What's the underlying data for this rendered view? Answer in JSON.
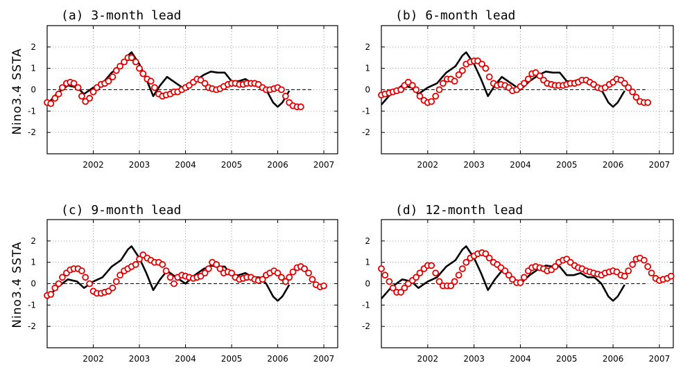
{
  "chart_data": [
    {
      "type": "line",
      "title": "(a) 3-month lead",
      "ylabel": "Nino3.4 SSTA",
      "xlim": [
        2001.0,
        2007.3
      ],
      "ylim": [
        -3,
        3
      ],
      "xticks": [
        "2002",
        "2003",
        "2004",
        "2005",
        "2006",
        "2007"
      ],
      "yticks": [
        "-2",
        "-1",
        "0",
        "1",
        "2"
      ],
      "grid": true,
      "series": [
        {
          "style": "black-line",
          "x": [
            2001.0,
            2001.2,
            2001.45,
            2001.65,
            2001.8,
            2002.0,
            2002.2,
            2002.4,
            2002.6,
            2002.75,
            2002.83,
            2003.0,
            2003.15,
            2003.3,
            2003.45,
            2003.6,
            2003.8,
            2004.0,
            2004.2,
            2004.4,
            2004.55,
            2004.7,
            2004.85,
            2005.0,
            2005.15,
            2005.3,
            2005.45,
            2005.6,
            2005.75,
            2005.9,
            2006.0,
            2006.1,
            2006.25
          ],
          "y": [
            -0.7,
            -0.2,
            0.2,
            0.1,
            -0.2,
            0.1,
            0.3,
            0.8,
            1.1,
            1.6,
            1.75,
            1.2,
            0.5,
            -0.3,
            0.2,
            0.6,
            0.3,
            0.0,
            0.4,
            0.7,
            0.85,
            0.8,
            0.8,
            0.4,
            0.4,
            0.5,
            0.3,
            0.3,
            0.0,
            -0.6,
            -0.8,
            -0.6,
            -0.05
          ]
        },
        {
          "style": "red-circles",
          "x": [
            2001.0,
            2001.08,
            2001.17,
            2001.25,
            2001.33,
            2001.42,
            2001.5,
            2001.58,
            2001.67,
            2001.75,
            2001.83,
            2001.92,
            2002.0,
            2002.08,
            2002.17,
            2002.25,
            2002.33,
            2002.42,
            2002.5,
            2002.58,
            2002.67,
            2002.75,
            2002.83,
            2002.92,
            2003.0,
            2003.08,
            2003.17,
            2003.25,
            2003.33,
            2003.42,
            2003.5,
            2003.58,
            2003.67,
            2003.75,
            2003.83,
            2003.92,
            2004.0,
            2004.08,
            2004.17,
            2004.25,
            2004.33,
            2004.42,
            2004.5,
            2004.58,
            2004.67,
            2004.75,
            2004.83,
            2004.92,
            2005.0,
            2005.08,
            2005.17,
            2005.25,
            2005.33,
            2005.42,
            2005.5,
            2005.58,
            2005.67,
            2005.75,
            2005.83,
            2005.92,
            2006.0,
            2006.08,
            2006.17,
            2006.25,
            2006.33,
            2006.42,
            2006.5
          ],
          "y": [
            -0.6,
            -0.65,
            -0.4,
            -0.2,
            0.1,
            0.3,
            0.35,
            0.3,
            0.1,
            -0.3,
            -0.55,
            -0.4,
            -0.1,
            0.1,
            0.25,
            0.3,
            0.4,
            0.6,
            0.9,
            1.1,
            1.3,
            1.5,
            1.5,
            1.3,
            1.0,
            0.75,
            0.5,
            0.4,
            0.1,
            -0.2,
            -0.3,
            -0.25,
            -0.2,
            -0.1,
            -0.1,
            0.0,
            0.1,
            0.2,
            0.35,
            0.5,
            0.45,
            0.3,
            0.1,
            0.05,
            0.0,
            0.05,
            0.15,
            0.25,
            0.3,
            0.3,
            0.25,
            0.25,
            0.3,
            0.3,
            0.3,
            0.25,
            0.1,
            0.0,
            0.0,
            0.05,
            0.1,
            0.0,
            -0.3,
            -0.6,
            -0.75,
            -0.8,
            -0.8
          ]
        }
      ]
    },
    {
      "type": "line",
      "title": "(b) 6-month lead",
      "ylabel": "",
      "xlim": [
        2001.0,
        2007.3
      ],
      "ylim": [
        -3,
        3
      ],
      "xticks": [
        "2002",
        "2003",
        "2004",
        "2005",
        "2006",
        "2007"
      ],
      "yticks": [
        "-2",
        "-1",
        "0",
        "1",
        "2"
      ],
      "grid": true,
      "series": [
        {
          "style": "black-line",
          "x": [
            2001.0,
            2001.2,
            2001.45,
            2001.65,
            2001.8,
            2002.0,
            2002.2,
            2002.4,
            2002.6,
            2002.75,
            2002.83,
            2003.0,
            2003.15,
            2003.3,
            2003.45,
            2003.6,
            2003.8,
            2004.0,
            2004.2,
            2004.4,
            2004.55,
            2004.7,
            2004.85,
            2005.0,
            2005.15,
            2005.3,
            2005.45,
            2005.6,
            2005.75,
            2005.9,
            2006.0,
            2006.1,
            2006.25
          ],
          "y": [
            -0.7,
            -0.2,
            0.2,
            0.1,
            -0.2,
            0.1,
            0.3,
            0.8,
            1.1,
            1.6,
            1.75,
            1.2,
            0.5,
            -0.3,
            0.2,
            0.6,
            0.3,
            0.0,
            0.4,
            0.7,
            0.85,
            0.8,
            0.8,
            0.4,
            0.4,
            0.5,
            0.3,
            0.3,
            0.0,
            -0.6,
            -0.8,
            -0.6,
            -0.05
          ]
        },
        {
          "style": "red-circles",
          "x": [
            2001.0,
            2001.08,
            2001.17,
            2001.25,
            2001.33,
            2001.42,
            2001.5,
            2001.58,
            2001.67,
            2001.75,
            2001.83,
            2001.92,
            2002.0,
            2002.08,
            2002.17,
            2002.25,
            2002.33,
            2002.42,
            2002.5,
            2002.58,
            2002.67,
            2002.75,
            2002.83,
            2002.92,
            2003.0,
            2003.08,
            2003.17,
            2003.25,
            2003.33,
            2003.42,
            2003.5,
            2003.58,
            2003.67,
            2003.75,
            2003.83,
            2003.92,
            2004.0,
            2004.08,
            2004.17,
            2004.25,
            2004.33,
            2004.42,
            2004.5,
            2004.58,
            2004.67,
            2004.75,
            2004.83,
            2004.92,
            2005.0,
            2005.08,
            2005.17,
            2005.25,
            2005.33,
            2005.42,
            2005.5,
            2005.58,
            2005.67,
            2005.75,
            2005.83,
            2005.92,
            2006.0,
            2006.08,
            2006.17,
            2006.25,
            2006.33,
            2006.42,
            2006.5,
            2006.58,
            2006.67,
            2006.75
          ],
          "y": [
            -0.25,
            -0.2,
            -0.15,
            -0.1,
            -0.05,
            0.0,
            0.2,
            0.35,
            0.2,
            0.0,
            -0.3,
            -0.5,
            -0.6,
            -0.55,
            -0.3,
            0.0,
            0.3,
            0.5,
            0.5,
            0.4,
            0.7,
            0.9,
            1.2,
            1.3,
            1.35,
            1.35,
            1.2,
            1.0,
            0.6,
            0.3,
            0.2,
            0.25,
            0.2,
            0.1,
            -0.05,
            0.0,
            0.15,
            0.3,
            0.5,
            0.75,
            0.8,
            0.65,
            0.45,
            0.3,
            0.25,
            0.2,
            0.2,
            0.2,
            0.25,
            0.3,
            0.3,
            0.35,
            0.45,
            0.45,
            0.35,
            0.25,
            0.1,
            0.05,
            0.1,
            0.25,
            0.35,
            0.5,
            0.45,
            0.3,
            0.1,
            -0.1,
            -0.35,
            -0.55,
            -0.6,
            -0.6
          ]
        }
      ]
    },
    {
      "type": "line",
      "title": "(c) 9-month lead",
      "ylabel": "Nino3.4 SSTA",
      "xlim": [
        2001.0,
        2007.3
      ],
      "ylim": [
        -3,
        3
      ],
      "xticks": [
        "2002",
        "2003",
        "2004",
        "2005",
        "2006",
        "2007"
      ],
      "yticks": [
        "-2",
        "-1",
        "0",
        "1",
        "2"
      ],
      "grid": true,
      "series": [
        {
          "style": "black-line",
          "x": [
            2001.0,
            2001.2,
            2001.45,
            2001.65,
            2001.8,
            2002.0,
            2002.2,
            2002.4,
            2002.6,
            2002.75,
            2002.83,
            2003.0,
            2003.15,
            2003.3,
            2003.45,
            2003.6,
            2003.8,
            2004.0,
            2004.2,
            2004.4,
            2004.55,
            2004.7,
            2004.85,
            2005.0,
            2005.15,
            2005.3,
            2005.45,
            2005.6,
            2005.75,
            2005.9,
            2006.0,
            2006.1,
            2006.25
          ],
          "y": [
            -0.7,
            -0.2,
            0.2,
            0.1,
            -0.2,
            0.1,
            0.3,
            0.8,
            1.1,
            1.6,
            1.75,
            1.2,
            0.5,
            -0.3,
            0.2,
            0.6,
            0.3,
            0.0,
            0.4,
            0.7,
            0.85,
            0.8,
            0.8,
            0.4,
            0.4,
            0.5,
            0.3,
            0.3,
            0.0,
            -0.6,
            -0.8,
            -0.6,
            -0.05
          ]
        },
        {
          "style": "red-circles",
          "x": [
            2001.0,
            2001.08,
            2001.17,
            2001.25,
            2001.33,
            2001.42,
            2001.5,
            2001.58,
            2001.67,
            2001.75,
            2001.83,
            2001.92,
            2002.0,
            2002.08,
            2002.17,
            2002.25,
            2002.33,
            2002.42,
            2002.5,
            2002.58,
            2002.67,
            2002.75,
            2002.83,
            2002.92,
            2003.0,
            2003.08,
            2003.17,
            2003.25,
            2003.33,
            2003.42,
            2003.5,
            2003.58,
            2003.67,
            2003.75,
            2003.83,
            2003.92,
            2004.0,
            2004.08,
            2004.17,
            2004.25,
            2004.33,
            2004.42,
            2004.5,
            2004.58,
            2004.67,
            2004.75,
            2004.83,
            2004.92,
            2005.0,
            2005.08,
            2005.17,
            2005.25,
            2005.33,
            2005.42,
            2005.5,
            2005.58,
            2005.67,
            2005.75,
            2005.83,
            2005.92,
            2006.0,
            2006.08,
            2006.17,
            2006.25,
            2006.33,
            2006.42,
            2006.5,
            2006.58,
            2006.67,
            2006.75,
            2006.83,
            2006.92,
            2007.0
          ],
          "y": [
            -0.55,
            -0.5,
            -0.2,
            0.0,
            0.3,
            0.5,
            0.65,
            0.7,
            0.7,
            0.6,
            0.3,
            0.0,
            -0.35,
            -0.45,
            -0.45,
            -0.4,
            -0.35,
            -0.2,
            0.1,
            0.4,
            0.6,
            0.7,
            0.8,
            0.9,
            1.15,
            1.35,
            1.2,
            1.1,
            1.0,
            1.0,
            0.9,
            0.6,
            0.3,
            0.0,
            0.3,
            0.4,
            0.35,
            0.3,
            0.25,
            0.3,
            0.35,
            0.5,
            0.7,
            1.0,
            0.9,
            0.7,
            0.5,
            0.55,
            0.5,
            0.3,
            0.2,
            0.25,
            0.3,
            0.3,
            0.2,
            0.15,
            0.2,
            0.4,
            0.5,
            0.6,
            0.5,
            0.3,
            0.1,
            0.3,
            0.55,
            0.75,
            0.8,
            0.7,
            0.5,
            0.2,
            -0.05,
            -0.15,
            -0.1
          ]
        }
      ]
    },
    {
      "type": "line",
      "title": "(d) 12-month lead",
      "ylabel": "",
      "xlim": [
        2001.0,
        2007.3
      ],
      "ylim": [
        -3,
        3
      ],
      "xticks": [
        "2002",
        "2003",
        "2004",
        "2005",
        "2006",
        "2007"
      ],
      "yticks": [
        "-2",
        "-1",
        "0",
        "1",
        "2"
      ],
      "grid": true,
      "series": [
        {
          "style": "black-line",
          "x": [
            2001.0,
            2001.2,
            2001.45,
            2001.65,
            2001.8,
            2002.0,
            2002.2,
            2002.4,
            2002.6,
            2002.75,
            2002.83,
            2003.0,
            2003.15,
            2003.3,
            2003.45,
            2003.6,
            2003.8,
            2004.0,
            2004.2,
            2004.4,
            2004.55,
            2004.7,
            2004.85,
            2005.0,
            2005.15,
            2005.3,
            2005.45,
            2005.6,
            2005.75,
            2005.9,
            2006.0,
            2006.1,
            2006.25
          ],
          "y": [
            -0.7,
            -0.2,
            0.2,
            0.1,
            -0.2,
            0.1,
            0.3,
            0.8,
            1.1,
            1.6,
            1.75,
            1.2,
            0.5,
            -0.3,
            0.2,
            0.6,
            0.3,
            0.0,
            0.4,
            0.7,
            0.85,
            0.8,
            0.8,
            0.4,
            0.4,
            0.5,
            0.3,
            0.3,
            0.0,
            -0.6,
            -0.8,
            -0.6,
            -0.05
          ]
        },
        {
          "style": "red-circles",
          "x": [
            2001.0,
            2001.08,
            2001.17,
            2001.25,
            2001.33,
            2001.42,
            2001.5,
            2001.58,
            2001.67,
            2001.75,
            2001.83,
            2001.92,
            2002.0,
            2002.08,
            2002.17,
            2002.25,
            2002.33,
            2002.42,
            2002.5,
            2002.58,
            2002.67,
            2002.75,
            2002.83,
            2002.92,
            2003.0,
            2003.08,
            2003.17,
            2003.25,
            2003.33,
            2003.42,
            2003.5,
            2003.58,
            2003.67,
            2003.75,
            2003.83,
            2003.92,
            2004.0,
            2004.08,
            2004.17,
            2004.25,
            2004.33,
            2004.42,
            2004.5,
            2004.58,
            2004.67,
            2004.75,
            2004.83,
            2004.92,
            2005.0,
            2005.08,
            2005.17,
            2005.25,
            2005.33,
            2005.42,
            2005.5,
            2005.58,
            2005.67,
            2005.75,
            2005.83,
            2005.92,
            2006.0,
            2006.08,
            2006.17,
            2006.25,
            2006.33,
            2006.42,
            2006.5,
            2006.58,
            2006.67,
            2006.75,
            2006.83,
            2006.92,
            2007.0,
            2007.08,
            2007.17,
            2007.25
          ],
          "y": [
            0.7,
            0.4,
            0.1,
            -0.2,
            -0.4,
            -0.4,
            -0.2,
            0.0,
            0.15,
            0.3,
            0.5,
            0.7,
            0.85,
            0.85,
            0.5,
            0.1,
            -0.1,
            -0.1,
            -0.1,
            0.1,
            0.4,
            0.7,
            1.0,
            1.2,
            1.3,
            1.4,
            1.45,
            1.4,
            1.2,
            1.0,
            0.9,
            0.75,
            0.6,
            0.4,
            0.2,
            0.05,
            0.05,
            0.3,
            0.6,
            0.75,
            0.8,
            0.75,
            0.7,
            0.6,
            0.65,
            0.8,
            1.0,
            1.1,
            1.15,
            1.0,
            0.85,
            0.75,
            0.7,
            0.6,
            0.55,
            0.5,
            0.45,
            0.4,
            0.5,
            0.55,
            0.6,
            0.55,
            0.4,
            0.35,
            0.6,
            0.9,
            1.15,
            1.2,
            1.1,
            0.8,
            0.5,
            0.25,
            0.15,
            0.2,
            0.25,
            0.35
          ]
        }
      ]
    }
  ]
}
